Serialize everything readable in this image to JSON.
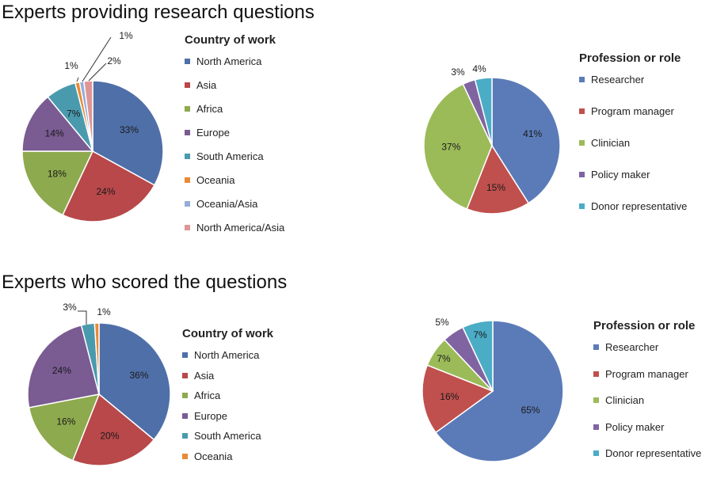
{
  "sections": [
    {
      "title": "Experts providing research questions"
    },
    {
      "title": "Experts who scored the questions"
    }
  ],
  "chart_data": [
    {
      "type": "pie",
      "legend_title": "Country of work",
      "categories": [
        "North America",
        "Asia",
        "Africa",
        "Europe",
        "South America",
        "Oceania",
        "Oceania/Asia",
        "North America/Asia"
      ],
      "values": [
        33,
        24,
        18,
        14,
        7,
        1,
        1,
        2
      ],
      "labels": [
        "33%",
        "24%",
        "18%",
        "14%",
        "7%",
        "1%",
        "1%",
        "2%"
      ],
      "colors": [
        "#4F6FA8",
        "#B8484A",
        "#8EAA4E",
        "#7A5B92",
        "#4A9AAE",
        "#E98A35",
        "#94AED8",
        "#DE9695"
      ]
    },
    {
      "type": "pie",
      "legend_title": "Profession or role",
      "categories": [
        "Researcher",
        "Program manager",
        "Clinician",
        "Policy maker",
        "Donor representative"
      ],
      "values": [
        41,
        15,
        37,
        3,
        4
      ],
      "labels": [
        "41%",
        "15%",
        "37%",
        "3%",
        "4%"
      ],
      "colors": [
        "#5B7BB8",
        "#C0504D",
        "#9BBB59",
        "#8064A2",
        "#4BACC6"
      ]
    },
    {
      "type": "pie",
      "legend_title": "Country of work",
      "categories": [
        "North America",
        "Asia",
        "Africa",
        "Europe",
        "South America",
        "Oceania"
      ],
      "values": [
        36,
        20,
        16,
        24,
        3,
        1
      ],
      "labels": [
        "36%",
        "20%",
        "16%",
        "24%",
        "3%",
        "1%"
      ],
      "colors": [
        "#4F6FA8",
        "#B8484A",
        "#8EAA4E",
        "#7A5B92",
        "#4A9AAE",
        "#E98A35"
      ]
    },
    {
      "type": "pie",
      "legend_title": "Profession or role",
      "categories": [
        "Researcher",
        "Program manager",
        "Clinician",
        "Policy maker",
        "Donor representative"
      ],
      "values": [
        65,
        16,
        7,
        5,
        7
      ],
      "labels": [
        "65%",
        "16%",
        "7%",
        "5%",
        "7%"
      ],
      "colors": [
        "#5B7BB8",
        "#C0504D",
        "#9BBB59",
        "#8064A2",
        "#4BACC6"
      ]
    }
  ]
}
